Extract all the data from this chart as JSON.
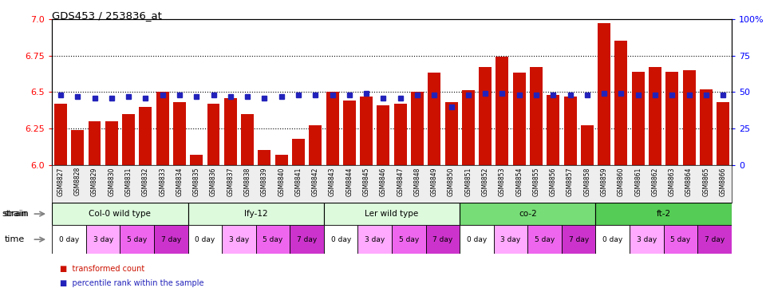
{
  "title": "GDS453 / 253836_at",
  "samples": [
    "GSM8827",
    "GSM8828",
    "GSM8829",
    "GSM8830",
    "GSM8831",
    "GSM8832",
    "GSM8833",
    "GSM8834",
    "GSM8835",
    "GSM8836",
    "GSM8837",
    "GSM8838",
    "GSM8839",
    "GSM8840",
    "GSM8841",
    "GSM8842",
    "GSM8843",
    "GSM8844",
    "GSM8845",
    "GSM8846",
    "GSM8847",
    "GSM8848",
    "GSM8849",
    "GSM8850",
    "GSM8851",
    "GSM8852",
    "GSM8853",
    "GSM8854",
    "GSM8855",
    "GSM8856",
    "GSM8857",
    "GSM8858",
    "GSM8859",
    "GSM8860",
    "GSM8861",
    "GSM8862",
    "GSM8863",
    "GSM8864",
    "GSM8865",
    "GSM8866"
  ],
  "bar_values": [
    6.42,
    6.24,
    6.3,
    6.3,
    6.35,
    6.4,
    6.5,
    6.43,
    6.07,
    6.42,
    6.46,
    6.35,
    6.1,
    6.07,
    6.18,
    6.27,
    6.5,
    6.44,
    6.47,
    6.41,
    6.42,
    6.5,
    6.63,
    6.43,
    6.51,
    6.67,
    6.74,
    6.63,
    6.67,
    6.48,
    6.47,
    6.27,
    6.97,
    6.85,
    6.64,
    6.67,
    6.64,
    6.65,
    6.52,
    6.43
  ],
  "percentile_rank": [
    48,
    47,
    46,
    46,
    47,
    46,
    48,
    48,
    47,
    48,
    47,
    47,
    46,
    47,
    48,
    48,
    48,
    48,
    49,
    46,
    46,
    48,
    48,
    40,
    48,
    49,
    49,
    48,
    48,
    48,
    48,
    48,
    49,
    49,
    48,
    48,
    48,
    48,
    48,
    48
  ],
  "strains": [
    {
      "label": "Col-0 wild type",
      "start": 0,
      "end": 8,
      "color": "#ddfadd"
    },
    {
      "label": "lfy-12",
      "start": 8,
      "end": 16,
      "color": "#ddfadd"
    },
    {
      "label": "Ler wild type",
      "start": 16,
      "end": 24,
      "color": "#ddfadd"
    },
    {
      "label": "co-2",
      "start": 24,
      "end": 32,
      "color": "#77dd77"
    },
    {
      "label": "ft-2",
      "start": 32,
      "end": 40,
      "color": "#55cc55"
    }
  ],
  "time_labels": [
    "0 day",
    "3 day",
    "5 day",
    "7 day"
  ],
  "time_colors": [
    "#ffffff",
    "#ffaaff",
    "#ee66ee",
    "#cc33cc"
  ],
  "ylim_left": [
    6.0,
    7.0
  ],
  "ylim_right": [
    0,
    100
  ],
  "yticks_left": [
    6.0,
    6.25,
    6.5,
    6.75,
    7.0
  ],
  "yticks_right": [
    0,
    25,
    50,
    75,
    100
  ],
  "bar_color": "#cc1100",
  "percentile_color": "#2222bb",
  "grid_color": "#333333",
  "xtick_bg": "#dddddd"
}
